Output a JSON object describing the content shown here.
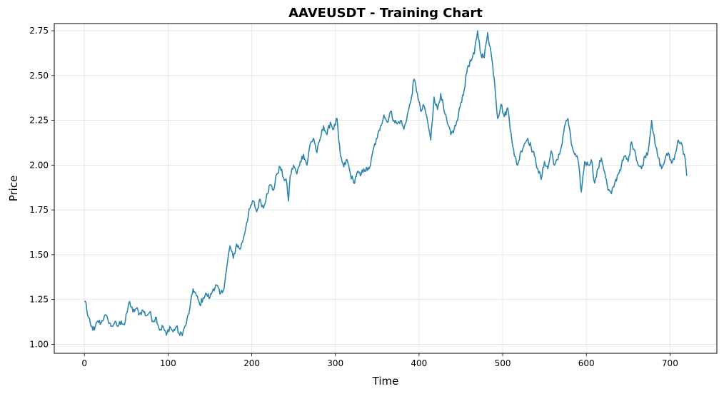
{
  "chart_data": {
    "type": "line",
    "title": "AAVEUSDT - Training Chart",
    "xlabel": "Time",
    "ylabel": "Price",
    "xlim": [
      -36,
      756
    ],
    "ylim": [
      0.95,
      2.79
    ],
    "x_ticks": [
      0,
      100,
      200,
      300,
      400,
      500,
      600,
      700
    ],
    "x_tick_labels": [
      "0",
      "100",
      "200",
      "300",
      "400",
      "500",
      "600",
      "700"
    ],
    "y_ticks": [
      1.0,
      1.25,
      1.5,
      1.75,
      2.0,
      2.25,
      2.5,
      2.75
    ],
    "y_tick_labels": [
      "1.00",
      "1.25",
      "1.50",
      "1.75",
      "2.00",
      "2.25",
      "2.50",
      "2.75"
    ],
    "grid": true,
    "line_color": "#2e86ab",
    "series": [
      {
        "anchors": [
          [
            0,
            1.24
          ],
          [
            2,
            1.23
          ],
          [
            4,
            1.16
          ],
          [
            8,
            1.1
          ],
          [
            12,
            1.08
          ],
          [
            16,
            1.13
          ],
          [
            20,
            1.12
          ],
          [
            24,
            1.16
          ],
          [
            28,
            1.14
          ],
          [
            32,
            1.1
          ],
          [
            36,
            1.12
          ],
          [
            40,
            1.1
          ],
          [
            44,
            1.13
          ],
          [
            48,
            1.11
          ],
          [
            52,
            1.2
          ],
          [
            54,
            1.24
          ],
          [
            58,
            1.18
          ],
          [
            62,
            1.2
          ],
          [
            66,
            1.17
          ],
          [
            70,
            1.19
          ],
          [
            74,
            1.16
          ],
          [
            78,
            1.18
          ],
          [
            82,
            1.13
          ],
          [
            86,
            1.15
          ],
          [
            90,
            1.08
          ],
          [
            94,
            1.1
          ],
          [
            98,
            1.05
          ],
          [
            102,
            1.1
          ],
          [
            106,
            1.07
          ],
          [
            110,
            1.1
          ],
          [
            114,
            1.05
          ],
          [
            118,
            1.07
          ],
          [
            122,
            1.12
          ],
          [
            126,
            1.2
          ],
          [
            130,
            1.31
          ],
          [
            134,
            1.27
          ],
          [
            138,
            1.22
          ],
          [
            142,
            1.26
          ],
          [
            146,
            1.28
          ],
          [
            150,
            1.26
          ],
          [
            154,
            1.31
          ],
          [
            158,
            1.33
          ],
          [
            162,
            1.28
          ],
          [
            166,
            1.3
          ],
          [
            170,
            1.42
          ],
          [
            174,
            1.55
          ],
          [
            178,
            1.48
          ],
          [
            182,
            1.56
          ],
          [
            186,
            1.53
          ],
          [
            190,
            1.59
          ],
          [
            194,
            1.68
          ],
          [
            198,
            1.76
          ],
          [
            202,
            1.8
          ],
          [
            206,
            1.74
          ],
          [
            210,
            1.81
          ],
          [
            214,
            1.76
          ],
          [
            218,
            1.84
          ],
          [
            222,
            1.89
          ],
          [
            226,
            1.86
          ],
          [
            230,
            1.95
          ],
          [
            234,
            1.99
          ],
          [
            238,
            1.93
          ],
          [
            242,
            1.9
          ],
          [
            244,
            1.8
          ],
          [
            246,
            1.94
          ],
          [
            250,
            2.0
          ],
          [
            254,
            1.95
          ],
          [
            258,
            2.02
          ],
          [
            262,
            2.06
          ],
          [
            266,
            2.0
          ],
          [
            270,
            2.12
          ],
          [
            274,
            2.15
          ],
          [
            278,
            2.07
          ],
          [
            282,
            2.15
          ],
          [
            286,
            2.22
          ],
          [
            290,
            2.17
          ],
          [
            294,
            2.24
          ],
          [
            298,
            2.2
          ],
          [
            302,
            2.26
          ],
          [
            304,
            2.14
          ],
          [
            306,
            2.05
          ],
          [
            310,
            1.99
          ],
          [
            314,
            2.03
          ],
          [
            318,
            1.95
          ],
          [
            322,
            1.9
          ],
          [
            326,
            1.96
          ],
          [
            330,
            1.94
          ],
          [
            334,
            1.98
          ],
          [
            338,
            1.97
          ],
          [
            342,
            2.0
          ],
          [
            346,
            2.1
          ],
          [
            350,
            2.15
          ],
          [
            354,
            2.22
          ],
          [
            358,
            2.28
          ],
          [
            362,
            2.24
          ],
          [
            366,
            2.3
          ],
          [
            370,
            2.25
          ],
          [
            374,
            2.23
          ],
          [
            378,
            2.25
          ],
          [
            382,
            2.2
          ],
          [
            386,
            2.28
          ],
          [
            390,
            2.35
          ],
          [
            394,
            2.48
          ],
          [
            398,
            2.4
          ],
          [
            402,
            2.3
          ],
          [
            406,
            2.33
          ],
          [
            410,
            2.25
          ],
          [
            414,
            2.14
          ],
          [
            418,
            2.38
          ],
          [
            422,
            2.31
          ],
          [
            426,
            2.4
          ],
          [
            430,
            2.3
          ],
          [
            434,
            2.23
          ],
          [
            438,
            2.17
          ],
          [
            442,
            2.2
          ],
          [
            446,
            2.25
          ],
          [
            450,
            2.35
          ],
          [
            454,
            2.42
          ],
          [
            458,
            2.55
          ],
          [
            462,
            2.58
          ],
          [
            466,
            2.62
          ],
          [
            470,
            2.75
          ],
          [
            474,
            2.62
          ],
          [
            478,
            2.6
          ],
          [
            482,
            2.74
          ],
          [
            486,
            2.63
          ],
          [
            490,
            2.48
          ],
          [
            494,
            2.26
          ],
          [
            498,
            2.34
          ],
          [
            502,
            2.27
          ],
          [
            506,
            2.32
          ],
          [
            510,
            2.18
          ],
          [
            514,
            2.05
          ],
          [
            518,
            2.0
          ],
          [
            522,
            2.08
          ],
          [
            526,
            2.12
          ],
          [
            530,
            2.15
          ],
          [
            534,
            2.1
          ],
          [
            538,
            2.05
          ],
          [
            542,
            1.98
          ],
          [
            546,
            1.92
          ],
          [
            550,
            2.02
          ],
          [
            554,
            1.98
          ],
          [
            558,
            2.08
          ],
          [
            562,
            2.0
          ],
          [
            566,
            2.03
          ],
          [
            570,
            2.1
          ],
          [
            574,
            2.22
          ],
          [
            578,
            2.26
          ],
          [
            582,
            2.12
          ],
          [
            586,
            2.06
          ],
          [
            590,
            2.03
          ],
          [
            594,
            1.85
          ],
          [
            598,
            2.02
          ],
          [
            602,
            2.0
          ],
          [
            606,
            2.03
          ],
          [
            610,
            1.9
          ],
          [
            614,
            1.98
          ],
          [
            618,
            2.04
          ],
          [
            622,
            1.96
          ],
          [
            626,
            1.86
          ],
          [
            630,
            1.84
          ],
          [
            634,
            1.9
          ],
          [
            638,
            1.95
          ],
          [
            642,
            2.0
          ],
          [
            646,
            2.05
          ],
          [
            650,
            2.02
          ],
          [
            654,
            2.13
          ],
          [
            658,
            2.08
          ],
          [
            662,
            2.0
          ],
          [
            666,
            1.98
          ],
          [
            670,
            2.05
          ],
          [
            674,
            2.08
          ],
          [
            678,
            2.25
          ],
          [
            682,
            2.12
          ],
          [
            686,
            2.04
          ],
          [
            690,
            1.98
          ],
          [
            694,
            2.03
          ],
          [
            698,
            2.07
          ],
          [
            702,
            2.01
          ],
          [
            706,
            2.06
          ],
          [
            710,
            2.14
          ],
          [
            714,
            2.12
          ],
          [
            716,
            2.06
          ],
          [
            718,
            2.04
          ],
          [
            720,
            1.94
          ]
        ]
      }
    ]
  }
}
